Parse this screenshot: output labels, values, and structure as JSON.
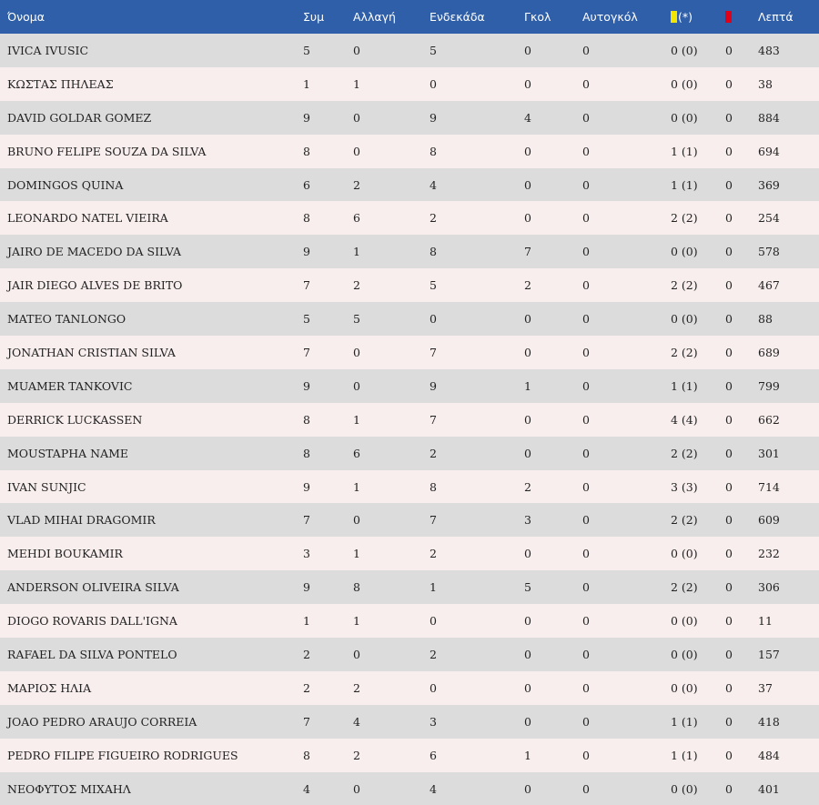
{
  "columns": {
    "name": "Όνομα",
    "apps": "Συμ",
    "sub": "Αλλαγή",
    "starts": "Ενδεκάδα",
    "goals": "Γκολ",
    "own_goals": "Αυτογκόλ",
    "yellow_note": "(*)",
    "minutes": "Λεπτά"
  },
  "icons": {
    "yellow": "yellow-card-icon",
    "red": "red-card-icon",
    "yellow_color": "#f2e600",
    "red_color": "#e0001a"
  },
  "colors": {
    "header_bg": "#2f5fa8",
    "row_odd": "#dcdcdc",
    "row_even": "#f8eeee"
  },
  "rows": [
    {
      "name": "IVICA IVUSIC",
      "apps": "5",
      "sub": "0",
      "starts": "5",
      "goals": "0",
      "own_goals": "0",
      "yellow": "0 (0)",
      "red": "0",
      "minutes": "483"
    },
    {
      "name": "ΚΩΣΤΑΣ ΠΗΛΕΑΣ",
      "apps": "1",
      "sub": "1",
      "starts": "0",
      "goals": "0",
      "own_goals": "0",
      "yellow": "0 (0)",
      "red": "0",
      "minutes": "38"
    },
    {
      "name": "DAVID GOLDAR GOMEZ",
      "apps": "9",
      "sub": "0",
      "starts": "9",
      "goals": "4",
      "own_goals": "0",
      "yellow": "0 (0)",
      "red": "0",
      "minutes": "884"
    },
    {
      "name": "BRUNO FELIPE SOUZA DA SILVA",
      "apps": "8",
      "sub": "0",
      "starts": "8",
      "goals": "0",
      "own_goals": "0",
      "yellow": "1 (1)",
      "red": "0",
      "minutes": "694"
    },
    {
      "name": "DOMINGOS QUINA",
      "apps": "6",
      "sub": "2",
      "starts": "4",
      "goals": "0",
      "own_goals": "0",
      "yellow": "1 (1)",
      "red": "0",
      "minutes": "369"
    },
    {
      "name": "LEONARDO NATEL VIEIRA",
      "apps": "8",
      "sub": "6",
      "starts": "2",
      "goals": "0",
      "own_goals": "0",
      "yellow": "2 (2)",
      "red": "0",
      "minutes": "254"
    },
    {
      "name": "JAIRO DE MACEDO DA SILVA",
      "apps": "9",
      "sub": "1",
      "starts": "8",
      "goals": "7",
      "own_goals": "0",
      "yellow": "0 (0)",
      "red": "0",
      "minutes": "578"
    },
    {
      "name": "JAIR DIEGO ALVES DE BRITO",
      "apps": "7",
      "sub": "2",
      "starts": "5",
      "goals": "2",
      "own_goals": "0",
      "yellow": "2 (2)",
      "red": "0",
      "minutes": "467"
    },
    {
      "name": "MATEO TANLONGO",
      "apps": "5",
      "sub": "5",
      "starts": "0",
      "goals": "0",
      "own_goals": "0",
      "yellow": "0 (0)",
      "red": "0",
      "minutes": "88"
    },
    {
      "name": "JONATHAN CRISTIAN SILVA",
      "apps": "7",
      "sub": "0",
      "starts": "7",
      "goals": "0",
      "own_goals": "0",
      "yellow": "2 (2)",
      "red": "0",
      "minutes": "689"
    },
    {
      "name": "MUAMER TANKOVIC",
      "apps": "9",
      "sub": "0",
      "starts": "9",
      "goals": "1",
      "own_goals": "0",
      "yellow": "1 (1)",
      "red": "0",
      "minutes": "799"
    },
    {
      "name": "DERRICK LUCKASSEN",
      "apps": "8",
      "sub": "1",
      "starts": "7",
      "goals": "0",
      "own_goals": "0",
      "yellow": "4 (4)",
      "red": "0",
      "minutes": "662"
    },
    {
      "name": "MOUSTAPHA NAME",
      "apps": "8",
      "sub": "6",
      "starts": "2",
      "goals": "0",
      "own_goals": "0",
      "yellow": "2 (2)",
      "red": "0",
      "minutes": "301"
    },
    {
      "name": "IVAN SUNJIC",
      "apps": "9",
      "sub": "1",
      "starts": "8",
      "goals": "2",
      "own_goals": "0",
      "yellow": "3 (3)",
      "red": "0",
      "minutes": "714"
    },
    {
      "name": "VLAD MIHAI DRAGOMIR",
      "apps": "7",
      "sub": "0",
      "starts": "7",
      "goals": "3",
      "own_goals": "0",
      "yellow": "2 (2)",
      "red": "0",
      "minutes": "609"
    },
    {
      "name": "MEHDI BOUKAMIR",
      "apps": "3",
      "sub": "1",
      "starts": "2",
      "goals": "0",
      "own_goals": "0",
      "yellow": "0 (0)",
      "red": "0",
      "minutes": "232"
    },
    {
      "name": "ANDERSON OLIVEIRA SILVA",
      "apps": "9",
      "sub": "8",
      "starts": "1",
      "goals": "5",
      "own_goals": "0",
      "yellow": "2 (2)",
      "red": "0",
      "minutes": "306"
    },
    {
      "name": "DIOGO ROVARIS DALL'IGNA",
      "apps": "1",
      "sub": "1",
      "starts": "0",
      "goals": "0",
      "own_goals": "0",
      "yellow": "0 (0)",
      "red": "0",
      "minutes": "11"
    },
    {
      "name": "RAFAEL DA SILVA PONTELO",
      "apps": "2",
      "sub": "0",
      "starts": "2",
      "goals": "0",
      "own_goals": "0",
      "yellow": "0 (0)",
      "red": "0",
      "minutes": "157"
    },
    {
      "name": "ΜΑΡΙΟΣ ΗΛΙΑ",
      "apps": "2",
      "sub": "2",
      "starts": "0",
      "goals": "0",
      "own_goals": "0",
      "yellow": "0 (0)",
      "red": "0",
      "minutes": "37"
    },
    {
      "name": "JOAO PEDRO ARAUJO CORREIA",
      "apps": "7",
      "sub": "4",
      "starts": "3",
      "goals": "0",
      "own_goals": "0",
      "yellow": "1 (1)",
      "red": "0",
      "minutes": "418"
    },
    {
      "name": "PEDRO FILIPE FIGUEIRO RODRIGUES",
      "apps": "8",
      "sub": "2",
      "starts": "6",
      "goals": "1",
      "own_goals": "0",
      "yellow": "1 (1)",
      "red": "0",
      "minutes": "484"
    },
    {
      "name": "ΝΕΟΦΥΤΟΣ ΜΙΧΑΗΛ",
      "apps": "4",
      "sub": "0",
      "starts": "4",
      "goals": "0",
      "own_goals": "0",
      "yellow": "0 (0)",
      "red": "0",
      "minutes": "401"
    }
  ]
}
